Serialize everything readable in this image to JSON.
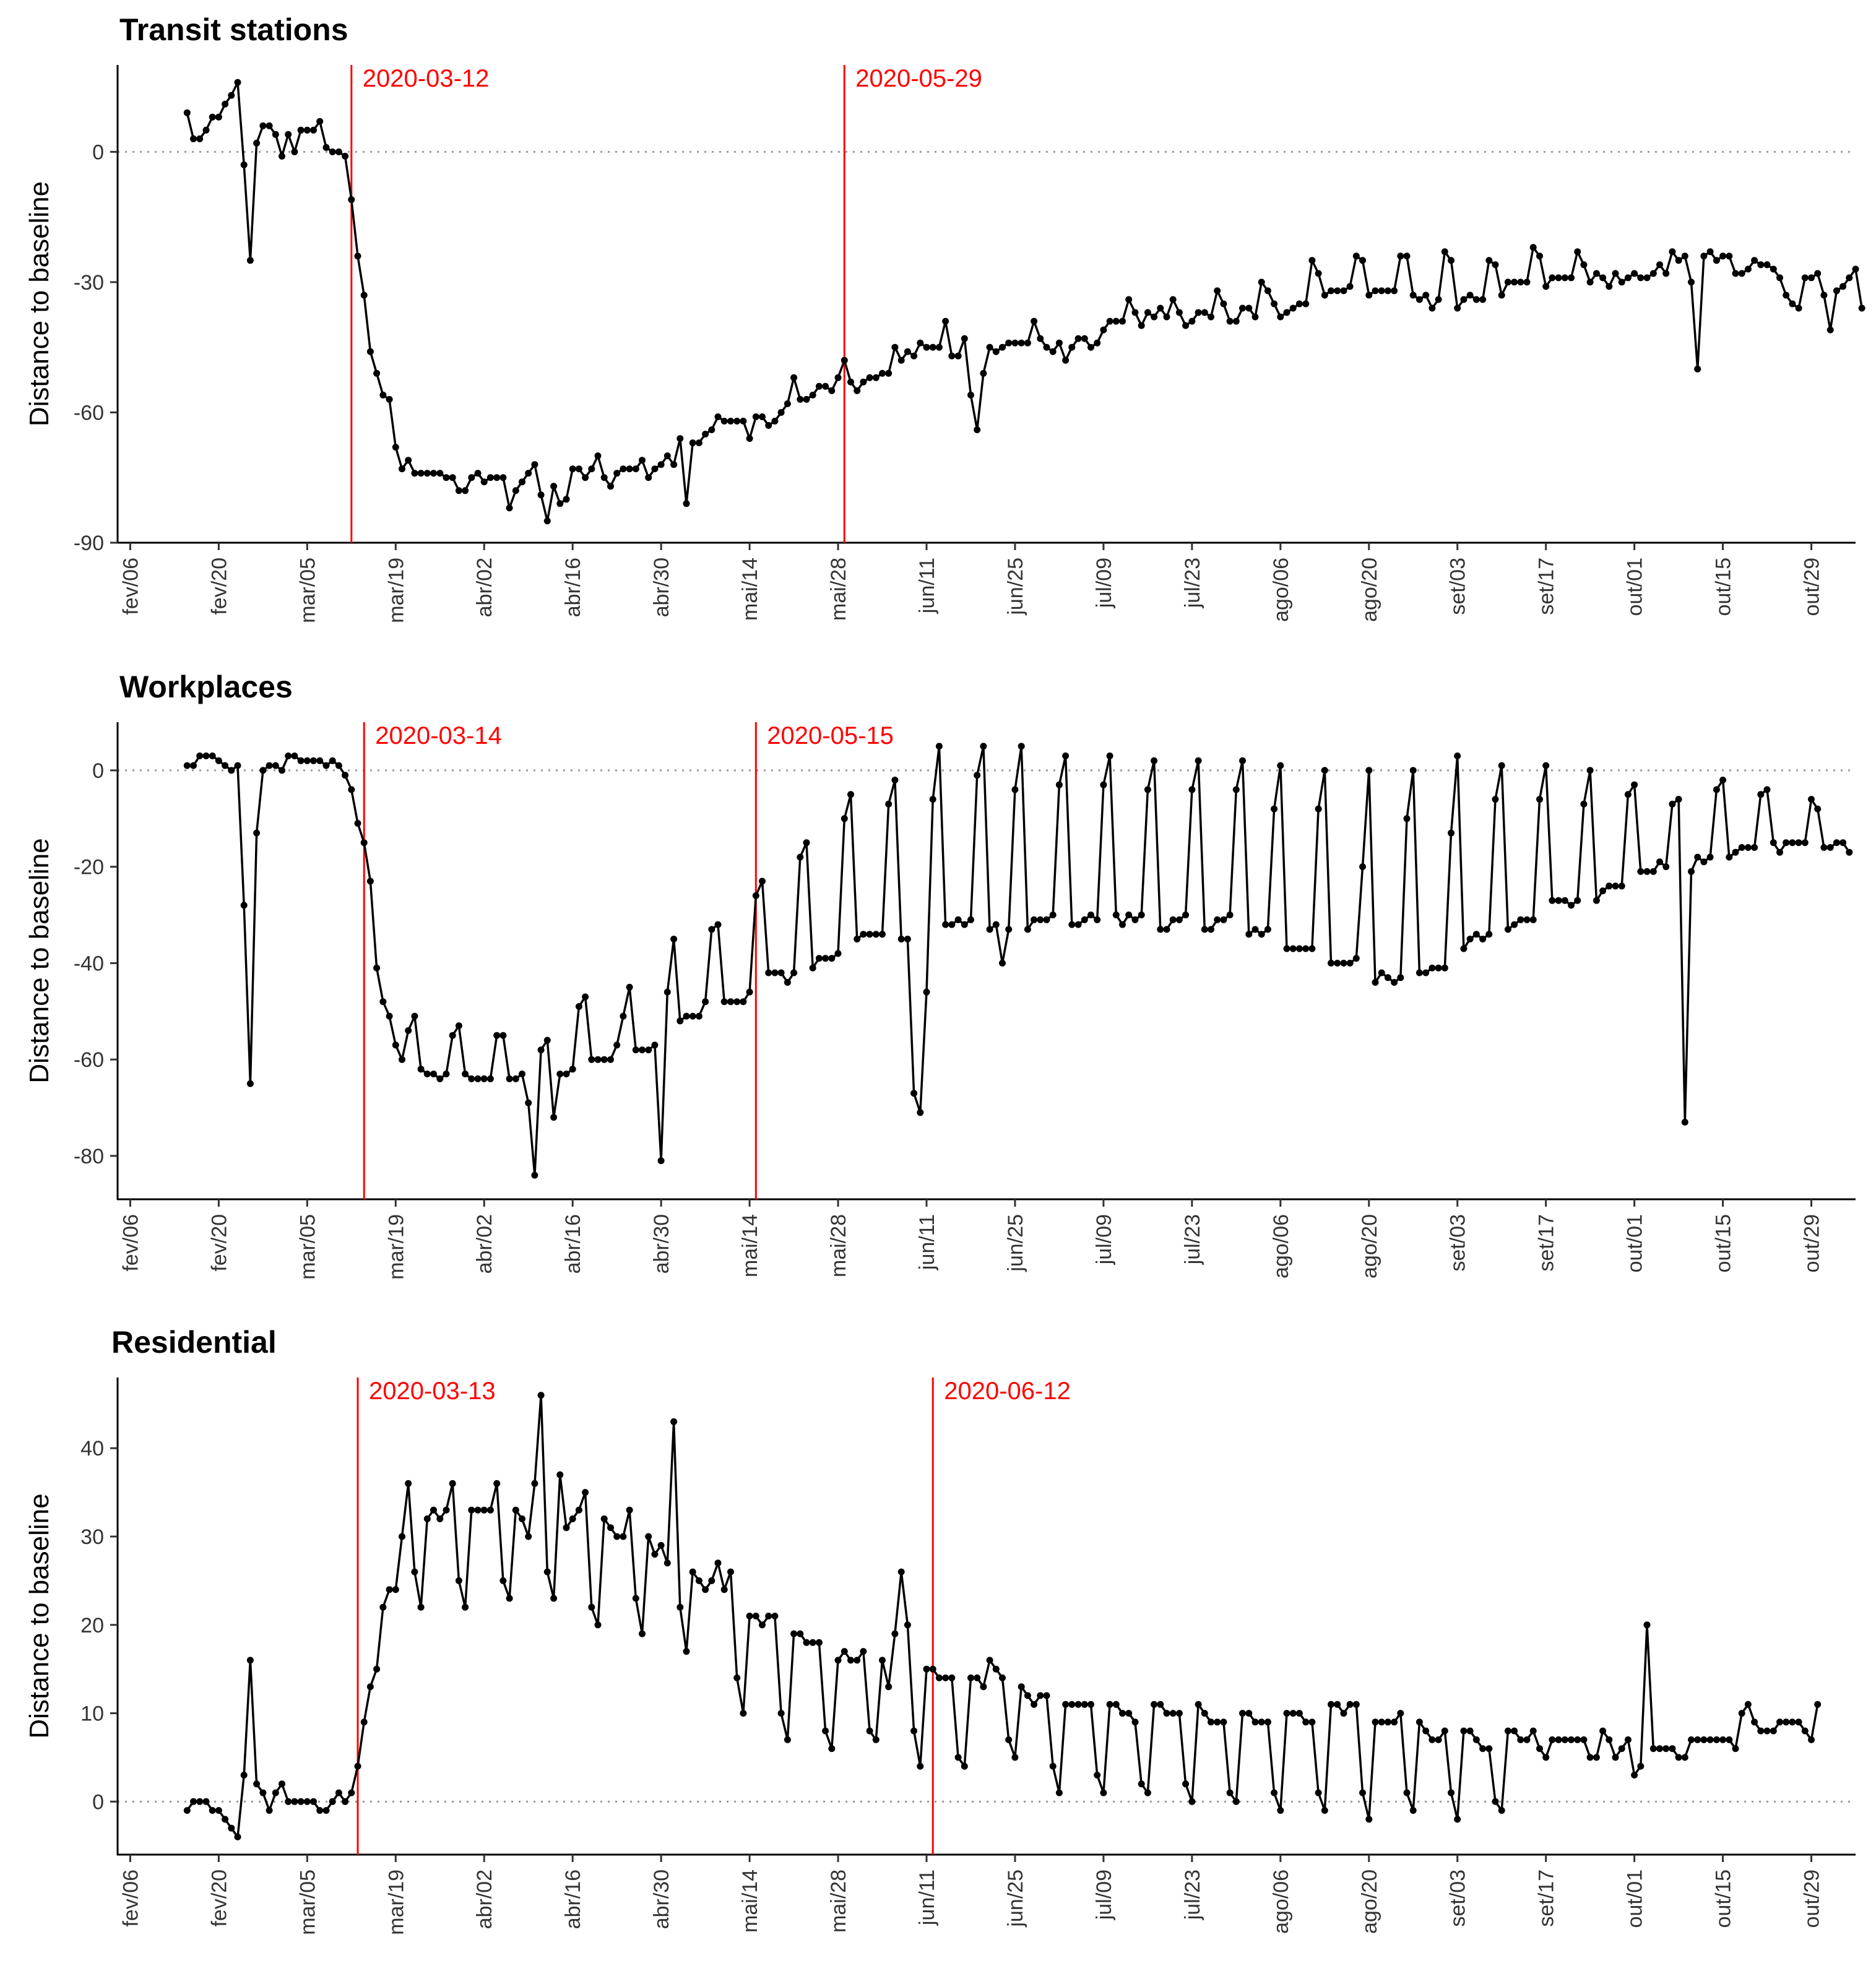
{
  "theme": {
    "line_color": "#000000",
    "vline_color": "#ff0000",
    "zero_color": "#999999"
  },
  "chart_data": [
    {
      "type": "line",
      "title": "Transit stations",
      "ylabel": "Distance to baseline",
      "xlabel": "",
      "ylim": [
        -90,
        20
      ],
      "yticks": [
        0,
        -30,
        -60,
        -90
      ],
      "xlim": [
        "2020-02-04",
        "2020-11-05"
      ],
      "xtick_dates": [
        "2020-02-06",
        "2020-02-20",
        "2020-03-05",
        "2020-03-19",
        "2020-04-02",
        "2020-04-16",
        "2020-04-30",
        "2020-05-14",
        "2020-05-28",
        "2020-06-11",
        "2020-06-25",
        "2020-07-09",
        "2020-07-23",
        "2020-08-06",
        "2020-08-20",
        "2020-09-03",
        "2020-09-17",
        "2020-10-01",
        "2020-10-15",
        "2020-10-29"
      ],
      "xtick_labels": [
        "fev/06",
        "fev/20",
        "mar/05",
        "mar/19",
        "abr/02",
        "abr/16",
        "abr/30",
        "mai/14",
        "mai/28",
        "jun/11",
        "jun/25",
        "jul/09",
        "jul/23",
        "ago/06",
        "ago/20",
        "set/03",
        "set/17",
        "out/01",
        "out/15",
        "out/29"
      ],
      "vlines": [
        {
          "date": "2020-03-12",
          "label": "2020-03-12"
        },
        {
          "date": "2020-05-29",
          "label": "2020-05-29"
        }
      ],
      "start_date": "2020-02-15",
      "values": [
        9,
        3,
        3,
        5,
        8,
        8,
        11,
        13,
        16,
        -3,
        -25,
        2,
        6,
        6,
        4,
        -1,
        4,
        0,
        5,
        5,
        5,
        7,
        1,
        0,
        0,
        -1,
        -11,
        -24,
        -33,
        -46,
        -51,
        -56,
        -57,
        -68,
        -73,
        -71,
        -74,
        -74,
        -74,
        -74,
        -74,
        -75,
        -75,
        -78,
        -78,
        -75,
        -74,
        -76,
        -75,
        -75,
        -75,
        -82,
        -78,
        -76,
        -74,
        -72,
        -79,
        -85,
        -77,
        -81,
        -80,
        -73,
        -73,
        -75,
        -73,
        -70,
        -75,
        -77,
        -74,
        -73,
        -73,
        -73,
        -71,
        -75,
        -73,
        -72,
        -70,
        -72,
        -66,
        -81,
        -67,
        -67,
        -65,
        -64,
        -61,
        -62,
        -62,
        -62,
        -62,
        -66,
        -61,
        -61,
        -63,
        -62,
        -60,
        -58,
        -52,
        -57,
        -57,
        -56,
        -54,
        -54,
        -55,
        -52,
        -48,
        -53,
        -55,
        -53,
        -52,
        -52,
        -51,
        -51,
        -45,
        -48,
        -46,
        -47,
        -44,
        -45,
        -45,
        -45,
        -39,
        -47,
        -47,
        -43,
        -56,
        -64,
        -51,
        -45,
        -46,
        -45,
        -44,
        -44,
        -44,
        -44,
        -39,
        -43,
        -45,
        -46,
        -44,
        -48,
        -45,
        -43,
        -43,
        -45,
        -44,
        -41,
        -39,
        -39,
        -39,
        -34,
        -37,
        -40,
        -37,
        -38,
        -36,
        -38,
        -34,
        -37,
        -40,
        -39,
        -37,
        -37,
        -38,
        -32,
        -35,
        -39,
        -39,
        -36,
        -36,
        -38,
        -30,
        -32,
        -35,
        -38,
        -37,
        -36,
        -35,
        -35,
        -25,
        -28,
        -33,
        -32,
        -32,
        -32,
        -31,
        -24,
        -25,
        -33,
        -32,
        -32,
        -32,
        -32,
        -24,
        -24,
        -33,
        -34,
        -33,
        -36,
        -34,
        -23,
        -25,
        -36,
        -34,
        -33,
        -34,
        -34,
        -25,
        -26,
        -33,
        -30,
        -30,
        -30,
        -30,
        -22,
        -24,
        -31,
        -29,
        -29,
        -29,
        -29,
        -23,
        -26,
        -30,
        -28,
        -29,
        -31,
        -28,
        -30,
        -29,
        -28,
        -29,
        -29,
        -28,
        -26,
        -28,
        -23,
        -25,
        -24,
        -30,
        -50,
        -24,
        -23,
        -25,
        -24,
        -24,
        -28,
        -28,
        -27,
        -25,
        -26,
        -26,
        -27,
        -29,
        -33,
        -35,
        -36,
        -29,
        -29,
        -28,
        -33,
        -41,
        -32,
        -31,
        -29,
        -27,
        -36
      ]
    },
    {
      "type": "line",
      "title": "Workplaces",
      "ylabel": "Distance to baseline",
      "xlabel": "",
      "ylim": [
        -89,
        10
      ],
      "yticks": [
        0,
        -20,
        -40,
        -60,
        -80
      ],
      "xlim": [
        "2020-02-04",
        "2020-11-05"
      ],
      "xtick_dates": [
        "2020-02-06",
        "2020-02-20",
        "2020-03-05",
        "2020-03-19",
        "2020-04-02",
        "2020-04-16",
        "2020-04-30",
        "2020-05-14",
        "2020-05-28",
        "2020-06-11",
        "2020-06-25",
        "2020-07-09",
        "2020-07-23",
        "2020-08-06",
        "2020-08-20",
        "2020-09-03",
        "2020-09-17",
        "2020-10-01",
        "2020-10-15",
        "2020-10-29"
      ],
      "xtick_labels": [
        "fev/06",
        "fev/20",
        "mar/05",
        "mar/19",
        "abr/02",
        "abr/16",
        "abr/30",
        "mai/14",
        "mai/28",
        "jun/11",
        "jun/25",
        "jul/09",
        "jul/23",
        "ago/06",
        "ago/20",
        "set/03",
        "set/17",
        "out/01",
        "out/15",
        "out/29"
      ],
      "vlines": [
        {
          "date": "2020-03-14",
          "label": "2020-03-14"
        },
        {
          "date": "2020-05-15",
          "label": "2020-05-15"
        }
      ],
      "start_date": "2020-02-15",
      "values": [
        1,
        1,
        3,
        3,
        3,
        2,
        1,
        0,
        1,
        -28,
        -65,
        -13,
        0,
        1,
        1,
        0,
        3,
        3,
        2,
        2,
        2,
        2,
        1,
        2,
        1,
        -1,
        -4,
        -11,
        -15,
        -23,
        -41,
        -48,
        -51,
        -57,
        -60,
        -54,
        -51,
        -62,
        -63,
        -63,
        -64,
        -63,
        -55,
        -53,
        -63,
        -64,
        -64,
        -64,
        -64,
        -55,
        -55,
        -64,
        -64,
        -63,
        -69,
        -84,
        -58,
        -56,
        -72,
        -63,
        -63,
        -62,
        -49,
        -47,
        -60,
        -60,
        -60,
        -60,
        -57,
        -51,
        -45,
        -58,
        -58,
        -58,
        -57,
        -81,
        -46,
        -35,
        -52,
        -51,
        -51,
        -51,
        -48,
        -33,
        -32,
        -48,
        -48,
        -48,
        -48,
        -46,
        -26,
        -23,
        -42,
        -42,
        -42,
        -44,
        -42,
        -18,
        -15,
        -41,
        -39,
        -39,
        -39,
        -38,
        -10,
        -5,
        -35,
        -34,
        -34,
        -34,
        -34,
        -7,
        -2,
        -35,
        -35,
        -67,
        -71,
        -46,
        -6,
        5,
        -32,
        -32,
        -31,
        -32,
        -31,
        -1,
        5,
        -33,
        -32,
        -40,
        -33,
        -4,
        5,
        -33,
        -31,
        -31,
        -31,
        -30,
        -3,
        3,
        -32,
        -32,
        -31,
        -30,
        -31,
        -3,
        3,
        -30,
        -32,
        -30,
        -31,
        -30,
        -4,
        2,
        -33,
        -33,
        -31,
        -31,
        -30,
        -4,
        2,
        -33,
        -33,
        -31,
        -31,
        -30,
        -4,
        2,
        -34,
        -33,
        -34,
        -33,
        -8,
        1,
        -37,
        -37,
        -37,
        -37,
        -37,
        -8,
        0,
        -40,
        -40,
        -40,
        -40,
        -39,
        -20,
        0,
        -44,
        -42,
        -43,
        -44,
        -43,
        -10,
        0,
        -42,
        -42,
        -41,
        -41,
        -41,
        -13,
        3,
        -37,
        -35,
        -34,
        -35,
        -34,
        -6,
        1,
        -33,
        -32,
        -31,
        -31,
        -31,
        -6,
        1,
        -27,
        -27,
        -27,
        -28,
        -27,
        -7,
        0,
        -27,
        -25,
        -24,
        -24,
        -24,
        -5,
        -3,
        -21,
        -21,
        -21,
        -19,
        -20,
        -7,
        -6,
        -73,
        -21,
        -18,
        -19,
        -18,
        -4,
        -2,
        -18,
        -17,
        -16,
        -16,
        -16,
        -5,
        -4,
        -15,
        -17,
        -15,
        -15,
        -15,
        -15,
        -6,
        -8,
        -16,
        -16,
        -15,
        -15,
        -17
      ]
    },
    {
      "type": "line",
      "title": "Residential",
      "ylabel": "Distance to baseline",
      "xlabel": "",
      "ylim": [
        -6,
        48
      ],
      "yticks": [
        0,
        10,
        20,
        30,
        40
      ],
      "xlim": [
        "2020-02-04",
        "2020-11-05"
      ],
      "xtick_dates": [
        "2020-02-06",
        "2020-02-20",
        "2020-03-05",
        "2020-03-19",
        "2020-04-02",
        "2020-04-16",
        "2020-04-30",
        "2020-05-14",
        "2020-05-28",
        "2020-06-11",
        "2020-06-25",
        "2020-07-09",
        "2020-07-23",
        "2020-08-06",
        "2020-08-20",
        "2020-09-03",
        "2020-09-17",
        "2020-10-01",
        "2020-10-15",
        "2020-10-29"
      ],
      "xtick_labels": [
        "fev/06",
        "fev/20",
        "mar/05",
        "mar/19",
        "abr/02",
        "abr/16",
        "abr/30",
        "mai/14",
        "mai/28",
        "jun/11",
        "jun/25",
        "jul/09",
        "jul/23",
        "ago/06",
        "ago/20",
        "set/03",
        "set/17",
        "out/01",
        "out/15",
        "out/29"
      ],
      "vlines": [
        {
          "date": "2020-03-13",
          "label": "2020-03-13"
        },
        {
          "date": "2020-06-12",
          "label": "2020-06-12"
        }
      ],
      "start_date": "2020-02-15",
      "values": [
        -1,
        0,
        0,
        0,
        -1,
        -1,
        -2,
        -3,
        -4,
        3,
        16,
        2,
        1,
        -1,
        1,
        2,
        0,
        0,
        0,
        0,
        0,
        -1,
        -1,
        0,
        1,
        0,
        1,
        4,
        9,
        13,
        15,
        22,
        24,
        24,
        30,
        36,
        26,
        22,
        32,
        33,
        32,
        33,
        36,
        25,
        22,
        33,
        33,
        33,
        33,
        36,
        25,
        23,
        33,
        32,
        30,
        36,
        46,
        26,
        23,
        37,
        31,
        32,
        33,
        35,
        22,
        20,
        32,
        31,
        30,
        30,
        33,
        23,
        19,
        30,
        28,
        29,
        27,
        43,
        22,
        17,
        26,
        25,
        24,
        25,
        27,
        24,
        26,
        14,
        10,
        21,
        21,
        20,
        21,
        21,
        10,
        7,
        19,
        19,
        18,
        18,
        18,
        8,
        6,
        16,
        17,
        16,
        16,
        17,
        8,
        7,
        16,
        13,
        19,
        26,
        20,
        8,
        4,
        15,
        15,
        14,
        14,
        14,
        5,
        4,
        14,
        14,
        13,
        16,
        15,
        14,
        7,
        5,
        13,
        12,
        11,
        12,
        12,
        4,
        1,
        11,
        11,
        11,
        11,
        11,
        3,
        1,
        11,
        11,
        10,
        10,
        9,
        2,
        1,
        11,
        11,
        10,
        10,
        10,
        2,
        0,
        11,
        10,
        9,
        9,
        9,
        1,
        0,
        10,
        10,
        9,
        9,
        9,
        1,
        -1,
        10,
        10,
        10,
        9,
        9,
        1,
        -1,
        11,
        11,
        10,
        11,
        11,
        1,
        -2,
        9,
        9,
        9,
        9,
        10,
        1,
        -1,
        9,
        8,
        7,
        7,
        8,
        1,
        -2,
        8,
        8,
        7,
        6,
        6,
        0,
        -1,
        8,
        8,
        7,
        7,
        8,
        6,
        5,
        7,
        7,
        7,
        7,
        7,
        7,
        5,
        5,
        8,
        7,
        5,
        6,
        7,
        3,
        4,
        20,
        6,
        6,
        6,
        6,
        5,
        5,
        7,
        7,
        7,
        7,
        7,
        7,
        7,
        6,
        10,
        11,
        9,
        8,
        8,
        8,
        9,
        9,
        9,
        9,
        8,
        7,
        11
      ]
    }
  ]
}
